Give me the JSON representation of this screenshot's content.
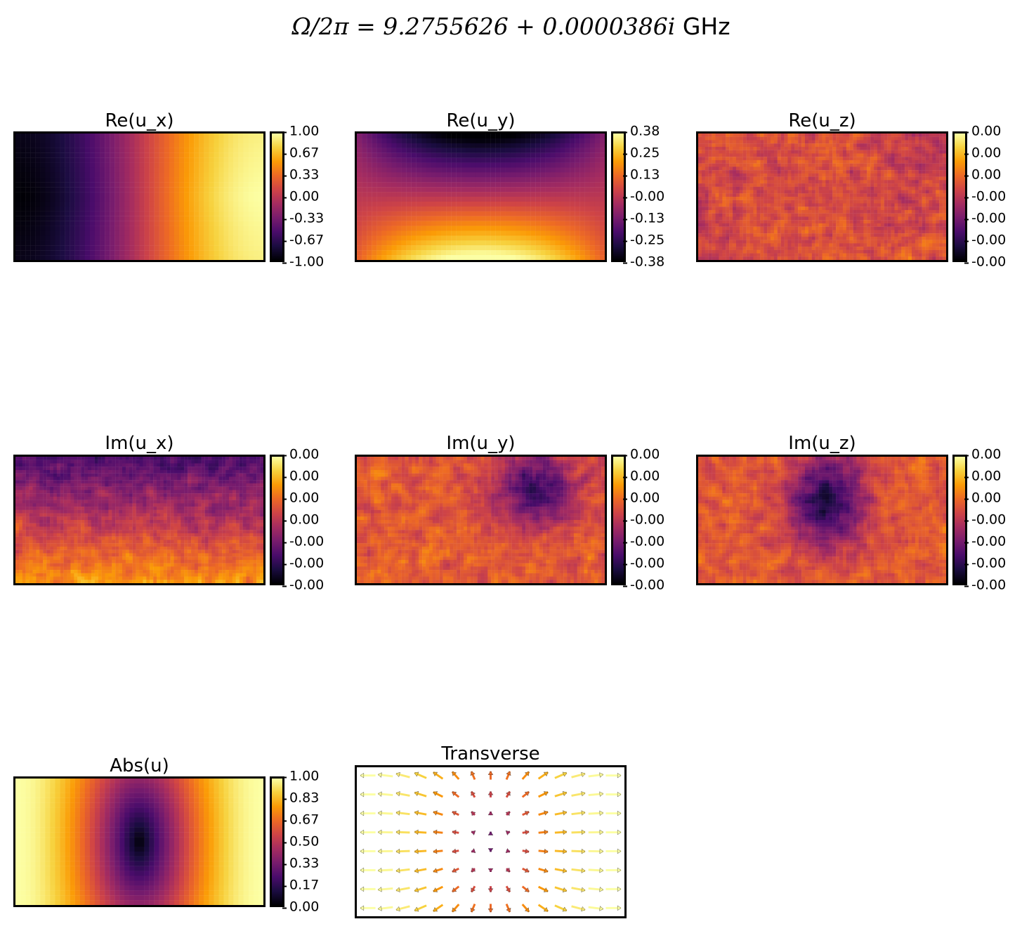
{
  "figure": {
    "title_math": "Ω/2π = 9.2755626 + 0.0000386i",
    "title_unit": "GHz"
  },
  "colormap": [
    "#000004",
    "#1b0c41",
    "#4a0c6b",
    "#781c6d",
    "#a52c60",
    "#cf4446",
    "#ed6925",
    "#fb9b06",
    "#f7d13d",
    "#fcffa4"
  ],
  "chart_data": [
    {
      "type": "heatmap",
      "title": "Re(u_x)",
      "pattern": "x-gradient",
      "colorbar_ticks": [
        "1.00",
        "0.67",
        "0.33",
        "0.00",
        "-0.33",
        "-0.67",
        "-1.00"
      ],
      "vmin": -1.0,
      "vmax": 1.0
    },
    {
      "type": "heatmap",
      "title": "Re(u_y)",
      "pattern": "y-gradient-saddle",
      "colorbar_ticks": [
        "0.38",
        "0.25",
        "0.13",
        "-0.00",
        "-0.13",
        "-0.25",
        "-0.38"
      ],
      "vmin": -0.38,
      "vmax": 0.38
    },
    {
      "type": "heatmap",
      "title": "Re(u_z)",
      "pattern": "noise",
      "colorbar_ticks": [
        "0.00",
        "0.00",
        "0.00",
        "-0.00",
        "-0.00",
        "-0.00",
        "-0.00"
      ]
    },
    {
      "type": "heatmap",
      "title": "Im(u_x)",
      "pattern": "noise-dark-top",
      "colorbar_ticks": [
        "0.00",
        "0.00",
        "0.00",
        "0.00",
        "-0.00",
        "-0.00",
        "-0.00"
      ]
    },
    {
      "type": "heatmap",
      "title": "Im(u_y)",
      "pattern": "noise-dark-right",
      "colorbar_ticks": [
        "0.00",
        "0.00",
        "0.00",
        "-0.00",
        "-0.00",
        "-0.00",
        "-0.00"
      ]
    },
    {
      "type": "heatmap",
      "title": "Im(u_z)",
      "pattern": "noise-dark-center",
      "colorbar_ticks": [
        "0.00",
        "0.00",
        "0.00",
        "-0.00",
        "-0.00",
        "-0.00",
        "-0.00"
      ]
    },
    {
      "type": "heatmap",
      "title": "Abs(u)",
      "pattern": "abs-node-center",
      "colorbar_ticks": [
        "1.00",
        "0.83",
        "0.67",
        "0.50",
        "0.33",
        "0.17",
        "0.00"
      ],
      "vmin": 0.0,
      "vmax": 1.0
    },
    {
      "type": "quiver",
      "title": "Transverse",
      "grid_cols": 15,
      "grid_rows": 8
    }
  ]
}
